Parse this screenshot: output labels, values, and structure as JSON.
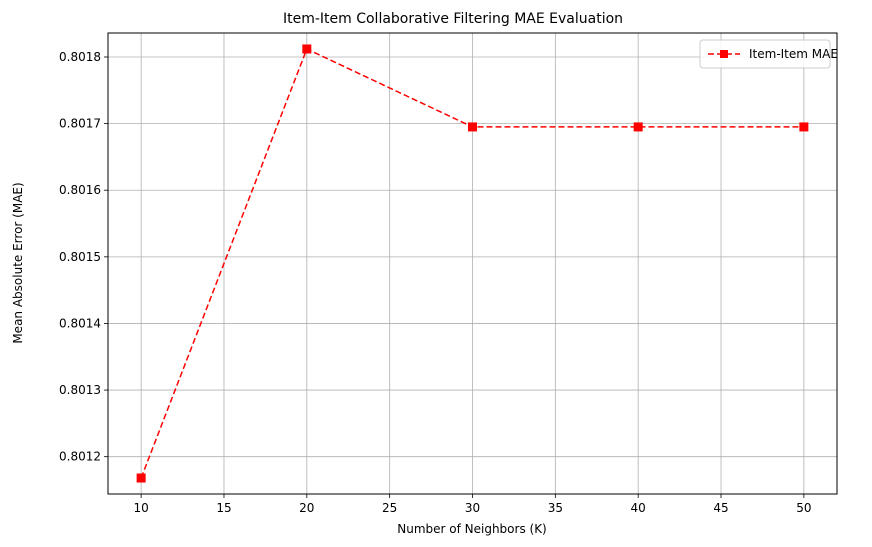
{
  "chart_data": {
    "type": "line",
    "title": "Item-Item Collaborative Filtering MAE Evaluation",
    "xlabel": "Number of Neighbors (K)",
    "ylabel": "Mean Absolute Error (MAE)",
    "x": [
      10,
      20,
      30,
      40,
      50
    ],
    "series": [
      {
        "name": "Item-Item MAE",
        "values": [
          0.801168,
          0.801812,
          0.801695,
          0.801695,
          0.801695
        ],
        "color": "#ff0000",
        "line_style": "dashed",
        "marker": "square"
      }
    ],
    "xlim": [
      8,
      52
    ],
    "ylim": [
      0.801144,
      0.801836
    ],
    "xticks": [
      10,
      15,
      20,
      25,
      30,
      35,
      40,
      45,
      50
    ],
    "xtick_labels": [
      "10",
      "15",
      "20",
      "25",
      "30",
      "35",
      "40",
      "45",
      "50"
    ],
    "yticks": [
      0.8012,
      0.8013,
      0.8014,
      0.8015,
      0.8016,
      0.8017,
      0.8018
    ],
    "ytick_labels": [
      "0.8012",
      "0.8013",
      "0.8014",
      "0.8015",
      "0.8016",
      "0.8017",
      "0.8018"
    ],
    "grid": true,
    "legend_position": "top-right"
  }
}
